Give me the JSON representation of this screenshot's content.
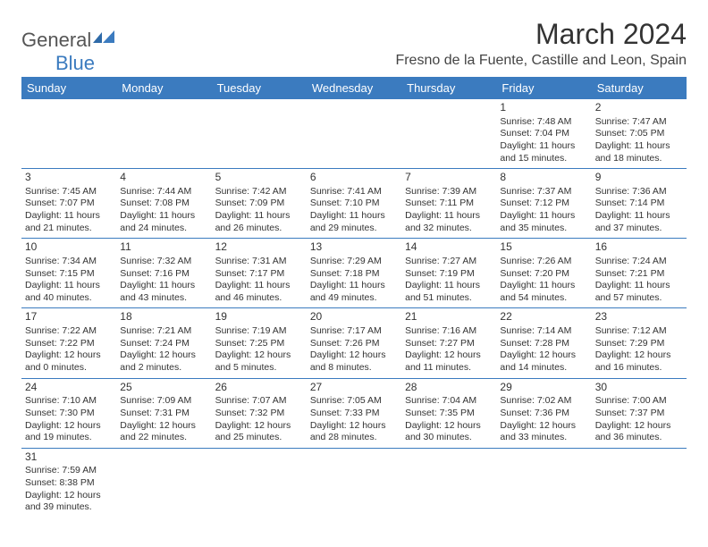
{
  "logo": {
    "text1": "General",
    "text2": "Blue"
  },
  "title": "March 2024",
  "location": "Fresno de la Fuente, Castille and Leon, Spain",
  "header_bg": "#3b7bbf",
  "days": [
    "Sunday",
    "Monday",
    "Tuesday",
    "Wednesday",
    "Thursday",
    "Friday",
    "Saturday"
  ],
  "weeks": [
    [
      null,
      null,
      null,
      null,
      null,
      {
        "n": "1",
        "sr": "7:48 AM",
        "ss": "7:04 PM",
        "dl": "11 hours and 15 minutes."
      },
      {
        "n": "2",
        "sr": "7:47 AM",
        "ss": "7:05 PM",
        "dl": "11 hours and 18 minutes."
      }
    ],
    [
      {
        "n": "3",
        "sr": "7:45 AM",
        "ss": "7:07 PM",
        "dl": "11 hours and 21 minutes."
      },
      {
        "n": "4",
        "sr": "7:44 AM",
        "ss": "7:08 PM",
        "dl": "11 hours and 24 minutes."
      },
      {
        "n": "5",
        "sr": "7:42 AM",
        "ss": "7:09 PM",
        "dl": "11 hours and 26 minutes."
      },
      {
        "n": "6",
        "sr": "7:41 AM",
        "ss": "7:10 PM",
        "dl": "11 hours and 29 minutes."
      },
      {
        "n": "7",
        "sr": "7:39 AM",
        "ss": "7:11 PM",
        "dl": "11 hours and 32 minutes."
      },
      {
        "n": "8",
        "sr": "7:37 AM",
        "ss": "7:12 PM",
        "dl": "11 hours and 35 minutes."
      },
      {
        "n": "9",
        "sr": "7:36 AM",
        "ss": "7:14 PM",
        "dl": "11 hours and 37 minutes."
      }
    ],
    [
      {
        "n": "10",
        "sr": "7:34 AM",
        "ss": "7:15 PM",
        "dl": "11 hours and 40 minutes."
      },
      {
        "n": "11",
        "sr": "7:32 AM",
        "ss": "7:16 PM",
        "dl": "11 hours and 43 minutes."
      },
      {
        "n": "12",
        "sr": "7:31 AM",
        "ss": "7:17 PM",
        "dl": "11 hours and 46 minutes."
      },
      {
        "n": "13",
        "sr": "7:29 AM",
        "ss": "7:18 PM",
        "dl": "11 hours and 49 minutes."
      },
      {
        "n": "14",
        "sr": "7:27 AM",
        "ss": "7:19 PM",
        "dl": "11 hours and 51 minutes."
      },
      {
        "n": "15",
        "sr": "7:26 AM",
        "ss": "7:20 PM",
        "dl": "11 hours and 54 minutes."
      },
      {
        "n": "16",
        "sr": "7:24 AM",
        "ss": "7:21 PM",
        "dl": "11 hours and 57 minutes."
      }
    ],
    [
      {
        "n": "17",
        "sr": "7:22 AM",
        "ss": "7:22 PM",
        "dl": "12 hours and 0 minutes."
      },
      {
        "n": "18",
        "sr": "7:21 AM",
        "ss": "7:24 PM",
        "dl": "12 hours and 2 minutes."
      },
      {
        "n": "19",
        "sr": "7:19 AM",
        "ss": "7:25 PM",
        "dl": "12 hours and 5 minutes."
      },
      {
        "n": "20",
        "sr": "7:17 AM",
        "ss": "7:26 PM",
        "dl": "12 hours and 8 minutes."
      },
      {
        "n": "21",
        "sr": "7:16 AM",
        "ss": "7:27 PM",
        "dl": "12 hours and 11 minutes."
      },
      {
        "n": "22",
        "sr": "7:14 AM",
        "ss": "7:28 PM",
        "dl": "12 hours and 14 minutes."
      },
      {
        "n": "23",
        "sr": "7:12 AM",
        "ss": "7:29 PM",
        "dl": "12 hours and 16 minutes."
      }
    ],
    [
      {
        "n": "24",
        "sr": "7:10 AM",
        "ss": "7:30 PM",
        "dl": "12 hours and 19 minutes."
      },
      {
        "n": "25",
        "sr": "7:09 AM",
        "ss": "7:31 PM",
        "dl": "12 hours and 22 minutes."
      },
      {
        "n": "26",
        "sr": "7:07 AM",
        "ss": "7:32 PM",
        "dl": "12 hours and 25 minutes."
      },
      {
        "n": "27",
        "sr": "7:05 AM",
        "ss": "7:33 PM",
        "dl": "12 hours and 28 minutes."
      },
      {
        "n": "28",
        "sr": "7:04 AM",
        "ss": "7:35 PM",
        "dl": "12 hours and 30 minutes."
      },
      {
        "n": "29",
        "sr": "7:02 AM",
        "ss": "7:36 PM",
        "dl": "12 hours and 33 minutes."
      },
      {
        "n": "30",
        "sr": "7:00 AM",
        "ss": "7:37 PM",
        "dl": "12 hours and 36 minutes."
      }
    ],
    [
      {
        "n": "31",
        "sr": "7:59 AM",
        "ss": "8:38 PM",
        "dl": "12 hours and 39 minutes."
      },
      null,
      null,
      null,
      null,
      null,
      null
    ]
  ],
  "labels": {
    "sunrise": "Sunrise: ",
    "sunset": "Sunset: ",
    "daylight": "Daylight: "
  }
}
